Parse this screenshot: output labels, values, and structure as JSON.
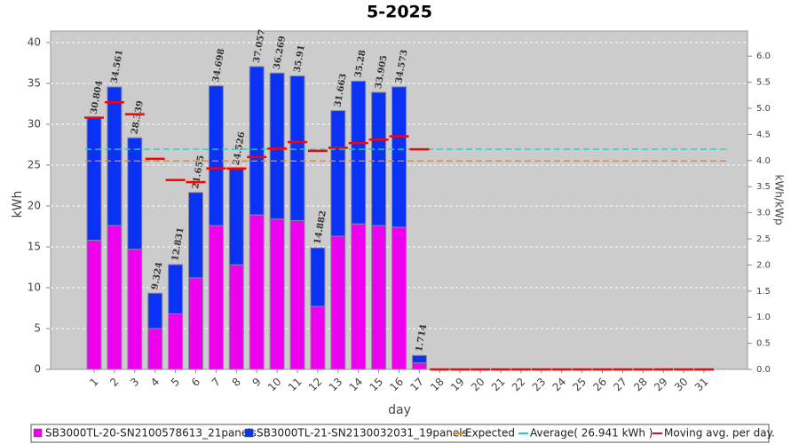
{
  "chart_data": {
    "type": "stacked-bar",
    "title": "5-2025",
    "x_label": "day",
    "y_label": "kWh",
    "y2_label": "kWh/kWp",
    "categories": [
      "1",
      "2",
      "3",
      "4",
      "5",
      "6",
      "7",
      "8",
      "9",
      "10",
      "11",
      "12",
      "13",
      "14",
      "15",
      "16",
      "17",
      "18",
      "19",
      "20",
      "21",
      "22",
      "23",
      "24",
      "25",
      "26",
      "27",
      "28",
      "29",
      "30",
      "31"
    ],
    "series": [
      {
        "name": "SB3000TL-20-SN2100578613_21panels",
        "color": "#ee00ee",
        "values": [
          15.8,
          17.6,
          14.7,
          5.0,
          6.8,
          11.2,
          17.6,
          12.8,
          18.9,
          18.4,
          18.2,
          7.7,
          16.3,
          17.8,
          17.6,
          17.4,
          0.8,
          0,
          0,
          0,
          0,
          0,
          0,
          0,
          0,
          0,
          0,
          0,
          0,
          0,
          0
        ]
      },
      {
        "name": "SB3000TL-21-SN2130032031_19panels",
        "color": "#0a32f5",
        "values": [
          15.004,
          16.961,
          13.639,
          4.324,
          6.031,
          10.455,
          17.098,
          11.726,
          18.157,
          17.869,
          17.71,
          7.182,
          15.363,
          17.48,
          16.305,
          17.173,
          0.914,
          0,
          0,
          0,
          0,
          0,
          0,
          0,
          0,
          0,
          0,
          0,
          0,
          0,
          0
        ]
      }
    ],
    "totals": [
      30.804,
      34.561,
      28.339,
      9.324,
      12.831,
      21.655,
      34.698,
      24.526,
      37.057,
      36.269,
      35.91,
      14.882,
      31.663,
      35.28,
      33.905,
      34.573,
      1.714,
      null,
      null,
      null,
      null,
      null,
      null,
      null,
      null,
      null,
      null,
      null,
      null,
      null,
      null
    ],
    "lines": [
      {
        "name": "Expected",
        "color": "#ff8000",
        "value": 25.5
      },
      {
        "name": "Average( 26.941 kWh )",
        "color": "#20d0d0",
        "value": 26.941
      }
    ],
    "moving_avg": {
      "name": "Moving avg. per day.",
      "color": "#ff0000",
      "values": [
        30.8,
        32.68,
        31.23,
        25.76,
        23.17,
        22.92,
        24.6,
        24.59,
        25.98,
        27.01,
        27.82,
        26.74,
        27.12,
        27.7,
        28.11,
        28.52,
        26.94,
        0,
        0,
        0,
        0,
        0,
        0,
        0,
        0,
        0,
        0,
        0,
        0,
        0,
        0
      ]
    },
    "ylim": [
      0,
      41.4
    ],
    "yticks": [
      0,
      5,
      10,
      15,
      20,
      25,
      30,
      35,
      40
    ],
    "y2lim": [
      0,
      6.48
    ],
    "y2ticks": [
      {
        "value": 0,
        "label": "0.0"
      },
      0.5,
      {
        "value": 1,
        "label": "1.0"
      },
      1.5,
      {
        "value": 2,
        "label": "2.0"
      },
      2.5,
      {
        "value": 3,
        "label": "3.0"
      },
      3.5,
      {
        "value": 4,
        "label": "4.0"
      },
      4.5,
      {
        "value": 5,
        "label": "5.0"
      },
      5.5,
      {
        "value": 6,
        "label": "6.0"
      }
    ],
    "grid": true
  }
}
